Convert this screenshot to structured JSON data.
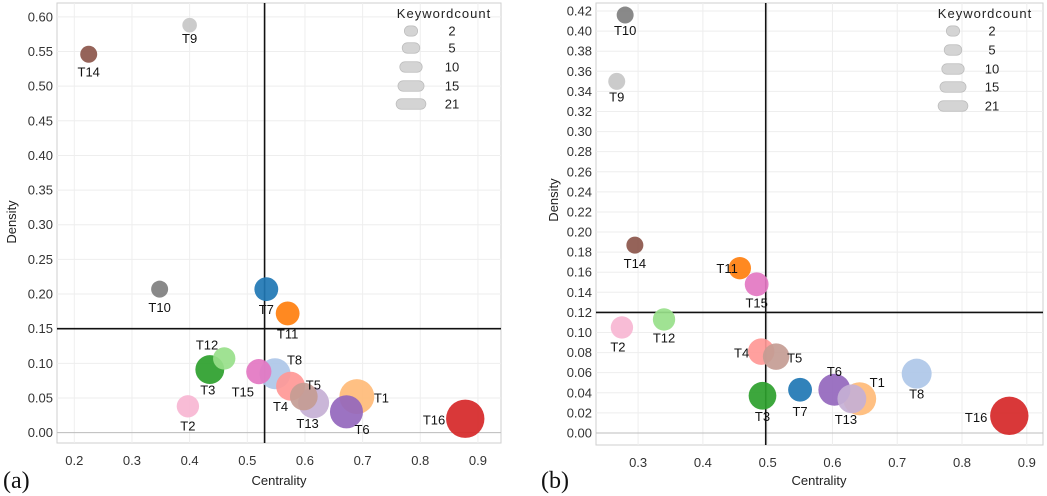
{
  "chart_data": [
    {
      "panel": "(a)",
      "type": "scatter",
      "xlabel": "Centrality",
      "ylabel": "Density",
      "xlim": [
        0.17,
        0.94
      ],
      "ylim": [
        -0.015,
        0.62
      ],
      "xticks": [
        "0.2",
        "0.3",
        "0.4",
        "0.5",
        "0.6",
        "0.7",
        "0.8",
        "0.9"
      ],
      "yticks": [
        "0.00",
        "0.05",
        "0.10",
        "0.15",
        "0.20",
        "0.25",
        "0.30",
        "0.35",
        "0.40",
        "0.45",
        "0.50",
        "0.55",
        "0.60"
      ],
      "vline": 0.53,
      "hline": 0.15,
      "grid": true,
      "legend": {
        "title": "Keywordcount",
        "placement": "top-right",
        "sizes": [
          2,
          5,
          10,
          15,
          21
        ]
      },
      "points": [
        {
          "label": "T9",
          "x": 0.4,
          "y": 0.588,
          "size": 2,
          "color": "#c7c7c7"
        },
        {
          "label": "T14",
          "x": 0.225,
          "y": 0.546,
          "size": 3,
          "color": "#8c564b"
        },
        {
          "label": "T10",
          "x": 0.348,
          "y": 0.207,
          "size": 3,
          "color": "#7f7f7f"
        },
        {
          "label": "T7",
          "x": 0.533,
          "y": 0.207,
          "size": 7,
          "color": "#1f77b4"
        },
        {
          "label": "T11",
          "x": 0.57,
          "y": 0.172,
          "size": 7,
          "color": "#ff7f0e"
        },
        {
          "label": "T12",
          "x": 0.46,
          "y": 0.107,
          "size": 6,
          "color": "#98df8a"
        },
        {
          "label": "T3",
          "x": 0.435,
          "y": 0.091,
          "size": 11,
          "color": "#2ca02c"
        },
        {
          "label": "T15",
          "x": 0.52,
          "y": 0.088,
          "size": 8,
          "color": "#e377c2"
        },
        {
          "label": "T8",
          "x": 0.548,
          "y": 0.085,
          "size": 13,
          "color": "#aec7e8"
        },
        {
          "label": "T4",
          "x": 0.575,
          "y": 0.067,
          "size": 11,
          "color": "#ff9896"
        },
        {
          "label": "T5",
          "x": 0.598,
          "y": 0.052,
          "size": 10,
          "color": "#c49c94"
        },
        {
          "label": "T13",
          "x": 0.615,
          "y": 0.043,
          "size": 13,
          "color": "#c5b0d5"
        },
        {
          "label": "T1",
          "x": 0.69,
          "y": 0.052,
          "size": 17,
          "color": "#ffbb78"
        },
        {
          "label": "T6",
          "x": 0.672,
          "y": 0.03,
          "size": 15,
          "color": "#9467bd"
        },
        {
          "label": "T2",
          "x": 0.397,
          "y": 0.038,
          "size": 6,
          "color": "#f7b6d2"
        },
        {
          "label": "T16",
          "x": 0.878,
          "y": 0.02,
          "size": 21,
          "color": "#d62728"
        }
      ]
    },
    {
      "panel": "(b)",
      "type": "scatter",
      "xlabel": "Centrality",
      "ylabel": "Density",
      "xlim": [
        0.235,
        0.925
      ],
      "ylim": [
        -0.012,
        0.428
      ],
      "xticks": [
        "0.3",
        "0.4",
        "0.5",
        "0.6",
        "0.7",
        "0.8",
        "0.9"
      ],
      "yticks": [
        "0.00",
        "0.02",
        "0.04",
        "0.06",
        "0.08",
        "0.10",
        "0.12",
        "0.14",
        "0.16",
        "0.18",
        "0.20",
        "0.22",
        "0.24",
        "0.26",
        "0.28",
        "0.30",
        "0.32",
        "0.34",
        "0.36",
        "0.38",
        "0.40",
        "0.42"
      ],
      "vline": 0.497,
      "hline": 0.12,
      "grid": true,
      "legend": {
        "title": "Keywordcount",
        "placement": "top-right",
        "sizes": [
          2,
          5,
          10,
          15,
          21
        ]
      },
      "points": [
        {
          "label": "T10",
          "x": 0.28,
          "y": 0.416,
          "size": 3,
          "color": "#7f7f7f"
        },
        {
          "label": "T9",
          "x": 0.267,
          "y": 0.35,
          "size": 3,
          "color": "#c7c7c7"
        },
        {
          "label": "T14",
          "x": 0.295,
          "y": 0.187,
          "size": 3,
          "color": "#8c564b"
        },
        {
          "label": "T11",
          "x": 0.457,
          "y": 0.164,
          "size": 6,
          "color": "#ff7f0e"
        },
        {
          "label": "T15",
          "x": 0.483,
          "y": 0.148,
          "size": 7,
          "color": "#e377c2"
        },
        {
          "label": "T12",
          "x": 0.34,
          "y": 0.113,
          "size": 6,
          "color": "#98df8a"
        },
        {
          "label": "T2",
          "x": 0.275,
          "y": 0.105,
          "size": 6,
          "color": "#f7b6d2"
        },
        {
          "label": "T4",
          "x": 0.49,
          "y": 0.081,
          "size": 9,
          "color": "#ff9896"
        },
        {
          "label": "T5",
          "x": 0.513,
          "y": 0.076,
          "size": 9,
          "color": "#c49c94"
        },
        {
          "label": "T3",
          "x": 0.492,
          "y": 0.037,
          "size": 10,
          "color": "#2ca02c"
        },
        {
          "label": "T7",
          "x": 0.55,
          "y": 0.043,
          "size": 7,
          "color": "#1f77b4"
        },
        {
          "label": "T6",
          "x": 0.603,
          "y": 0.043,
          "size": 14,
          "color": "#9467bd"
        },
        {
          "label": "T1",
          "x": 0.642,
          "y": 0.034,
          "size": 15,
          "color": "#ffbb78"
        },
        {
          "label": "T13",
          "x": 0.63,
          "y": 0.034,
          "size": 11,
          "color": "#c5b0d5"
        },
        {
          "label": "T8",
          "x": 0.73,
          "y": 0.059,
          "size": 12,
          "color": "#aec7e8"
        },
        {
          "label": "T16",
          "x": 0.873,
          "y": 0.017,
          "size": 21,
          "color": "#d62728"
        }
      ]
    }
  ]
}
